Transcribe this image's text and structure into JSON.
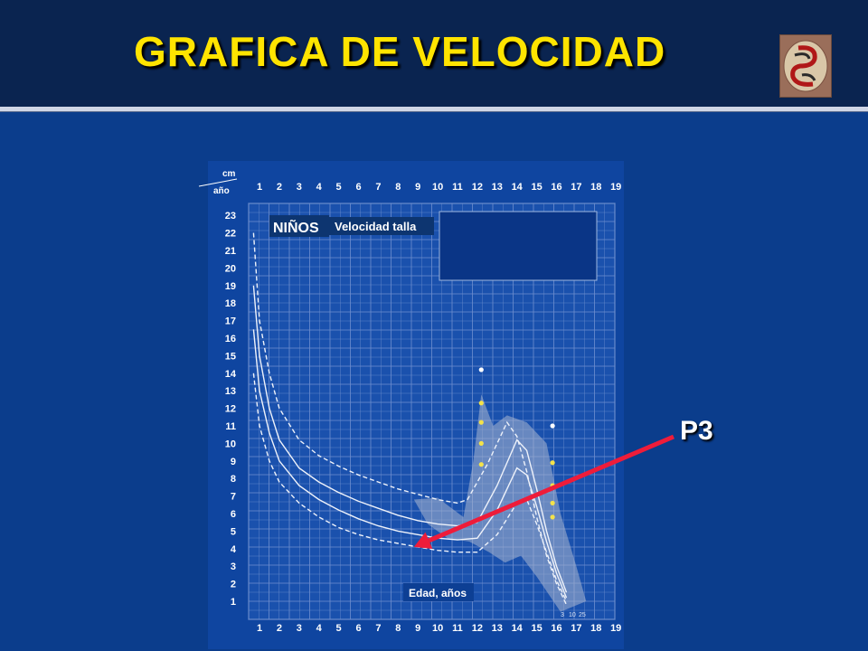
{
  "title": "GRAFICA DE VELOCIDAD",
  "pointer_label": "P3",
  "colors": {
    "title": "#ffe400",
    "arrow": "#ee1c3a",
    "background": "#0b3d8c",
    "header": "#0a2450"
  },
  "chart_data": {
    "type": "line",
    "title": "",
    "panel_label": "NIÑOS",
    "panel_sublabel": "Velocidad talla",
    "y_unit_label": "cm",
    "x_unit_label": "año",
    "xlabel": "Edad, años",
    "xlim": [
      0,
      19
    ],
    "ylim": [
      0,
      23
    ],
    "x_ticks": [
      1,
      2,
      3,
      4,
      5,
      6,
      7,
      8,
      9,
      10,
      11,
      12,
      13,
      14,
      15,
      16,
      17,
      18,
      19
    ],
    "y_ticks": [
      1,
      2,
      3,
      4,
      5,
      6,
      7,
      8,
      9,
      10,
      11,
      12,
      13,
      14,
      15,
      16,
      17,
      18,
      19,
      20,
      21,
      22,
      23
    ],
    "percentile_labels": [
      "3",
      "10",
      "25"
    ],
    "series": [
      {
        "x": [
          0.7,
          1,
          1.5,
          2,
          3,
          4,
          5,
          6,
          7,
          8,
          9,
          10,
          11,
          11.5,
          12.5,
          13.5,
          14,
          14.5,
          15,
          15.5,
          16,
          16.5
        ],
        "y": [
          22,
          17,
          14,
          12,
          10.2,
          9.3,
          8.7,
          8.2,
          7.8,
          7.4,
          7.1,
          6.8,
          6.6,
          6.8,
          8.8,
          11.2,
          10.4,
          8.4,
          5.8,
          3.6,
          2,
          0.8
        ]
      },
      {
        "x": [
          0.7,
          1,
          1.5,
          2,
          3,
          4,
          5,
          6,
          7,
          8,
          9,
          10,
          11,
          12,
          13,
          14,
          14.5,
          15,
          15.5,
          16,
          16.5
        ],
        "y": [
          19,
          15,
          12,
          10.2,
          8.6,
          7.8,
          7.2,
          6.7,
          6.3,
          5.9,
          5.6,
          5.4,
          5.3,
          5.5,
          7.6,
          10.2,
          9.6,
          7.4,
          5,
          3,
          1.5
        ]
      },
      {
        "x": [
          0.7,
          1,
          1.5,
          2,
          3,
          4,
          5,
          6,
          7,
          8,
          9,
          10,
          11,
          12,
          13,
          14,
          14.5,
          15,
          15.5,
          16,
          16.5
        ],
        "y": [
          16.5,
          13,
          10.6,
          9,
          7.6,
          6.8,
          6.2,
          5.7,
          5.3,
          5,
          4.8,
          4.6,
          4.5,
          4.6,
          6.2,
          8.6,
          8.2,
          6.4,
          4.4,
          2.6,
          1.2
        ]
      },
      {
        "x": [
          0.7,
          1,
          1.5,
          2,
          3,
          4,
          5,
          6,
          7,
          8,
          9,
          10,
          11,
          12,
          13,
          14,
          14.5,
          15,
          15.5,
          16,
          16.5
        ],
        "y": [
          14,
          11,
          9,
          7.8,
          6.6,
          5.8,
          5.2,
          4.8,
          4.5,
          4.3,
          4.1,
          3.9,
          3.8,
          3.8,
          4.8,
          6.6,
          6.8,
          5.4,
          3.8,
          2.2,
          1
        ]
      }
    ],
    "pointer_target": {
      "x": 8.8,
      "y": 4.1
    },
    "grid": true
  }
}
